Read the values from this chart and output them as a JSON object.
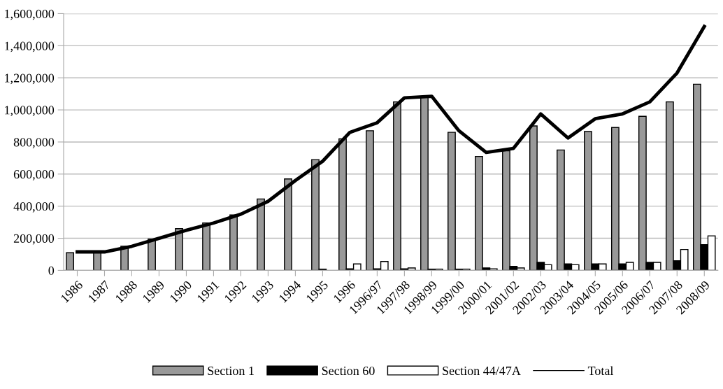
{
  "chart_data": {
    "type": "bar",
    "categories": [
      "1986",
      "1987",
      "1988",
      "1989",
      "1990",
      "1991",
      "1992",
      "1993",
      "1994",
      "1995",
      "1996",
      "1996/97",
      "1997/98",
      "1998/99",
      "1999/00",
      "2000/01",
      "2001/02",
      "2002/03",
      "2003/04",
      "2004/05",
      "2005/06",
      "2006/07",
      "2007/08",
      "2008/09"
    ],
    "series": [
      {
        "name": "Section 1",
        "color": "#999999",
        "values": [
          110000,
          110000,
          150000,
          195000,
          260000,
          295000,
          345000,
          445000,
          570000,
          690000,
          820000,
          870000,
          1050000,
          1080000,
          860000,
          710000,
          745000,
          900000,
          750000,
          865000,
          890000,
          960000,
          1050000,
          1160000
        ]
      },
      {
        "name": "Section 60",
        "color": "#000000",
        "values": [
          null,
          null,
          null,
          null,
          null,
          null,
          null,
          null,
          null,
          8000,
          10000,
          10000,
          10000,
          8000,
          8000,
          15000,
          25000,
          50000,
          40000,
          40000,
          40000,
          50000,
          60000,
          160000
        ]
      },
      {
        "name": "Section 44/47A",
        "color": "#ffffff",
        "values": [
          null,
          null,
          null,
          null,
          null,
          null,
          null,
          null,
          null,
          null,
          40000,
          55000,
          15000,
          8000,
          8000,
          10000,
          15000,
          35000,
          35000,
          40000,
          50000,
          50000,
          130000,
          215000
        ]
      },
      {
        "name": "Total",
        "type": "line",
        "color": "#000000",
        "values": [
          115000,
          115000,
          150000,
          200000,
          250000,
          295000,
          350000,
          430000,
          560000,
          680000,
          860000,
          920000,
          1075000,
          1085000,
          870000,
          735000,
          760000,
          975000,
          825000,
          945000,
          975000,
          1050000,
          1230000,
          1520000
        ]
      }
    ],
    "ylim": [
      0,
      1600000
    ],
    "yticks": [
      {
        "value": 0,
        "label": "0"
      },
      {
        "value": 200000,
        "label": "200,000"
      },
      {
        "value": 400000,
        "label": "400,000"
      },
      {
        "value": 600000,
        "label": "600,000"
      },
      {
        "value": 800000,
        "label": "800,000"
      },
      {
        "value": 1000000,
        "label": "1,000,000"
      },
      {
        "value": 1200000,
        "label": "1,200,000"
      },
      {
        "value": 1400000,
        "label": "1,400,000"
      },
      {
        "value": 1600000,
        "label": "1,600,000"
      }
    ],
    "grid": "y",
    "legend": "bottom"
  }
}
